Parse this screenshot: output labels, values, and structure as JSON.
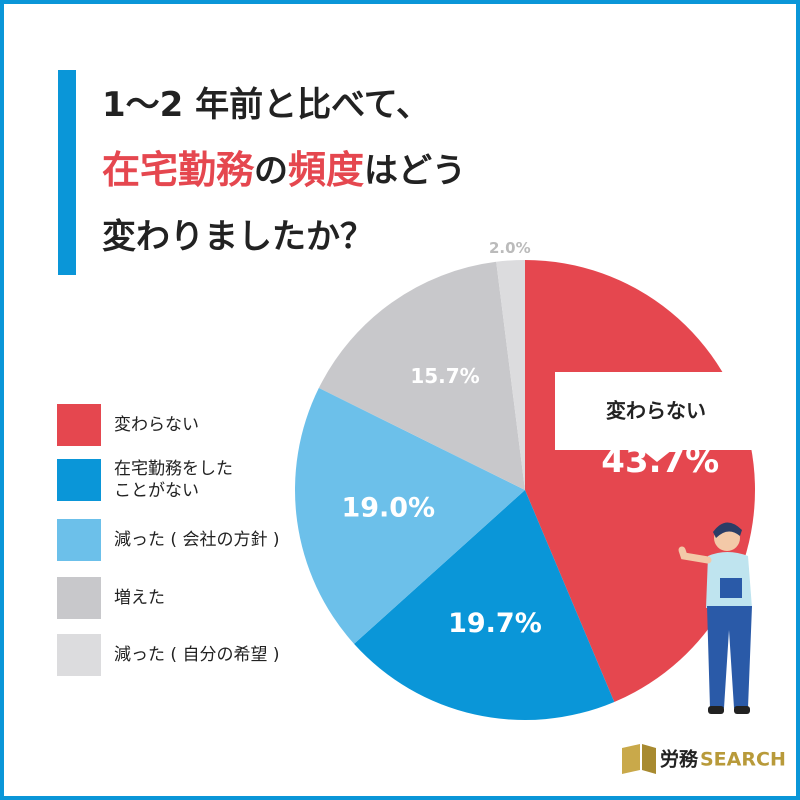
{
  "chart_data": {
    "type": "pie",
    "title_lines": [
      [
        "1〜2 年前と比べて、"
      ],
      [
        "在宅勤務",
        "の",
        "頻度",
        "はどう"
      ],
      [
        "変わりましたか？"
      ]
    ],
    "categories": [
      "変わらない",
      "在宅勤務をした\nことがない",
      "減った ( 会社の方針 )",
      "増えた",
      "減った ( 自分の希望 )"
    ],
    "values": [
      43.7,
      19.7,
      19.0,
      15.7,
      2.0
    ],
    "value_labels": [
      "43.7%",
      "19.7%",
      "19.0%",
      "15.7%",
      "2.0%"
    ],
    "colors": [
      "#e5474f",
      "#0a96d8",
      "#6cc0ea",
      "#c8c8cb",
      "#dcdcde"
    ],
    "callout": "変わらない",
    "logo": [
      "労務",
      "SEARCH"
    ]
  }
}
